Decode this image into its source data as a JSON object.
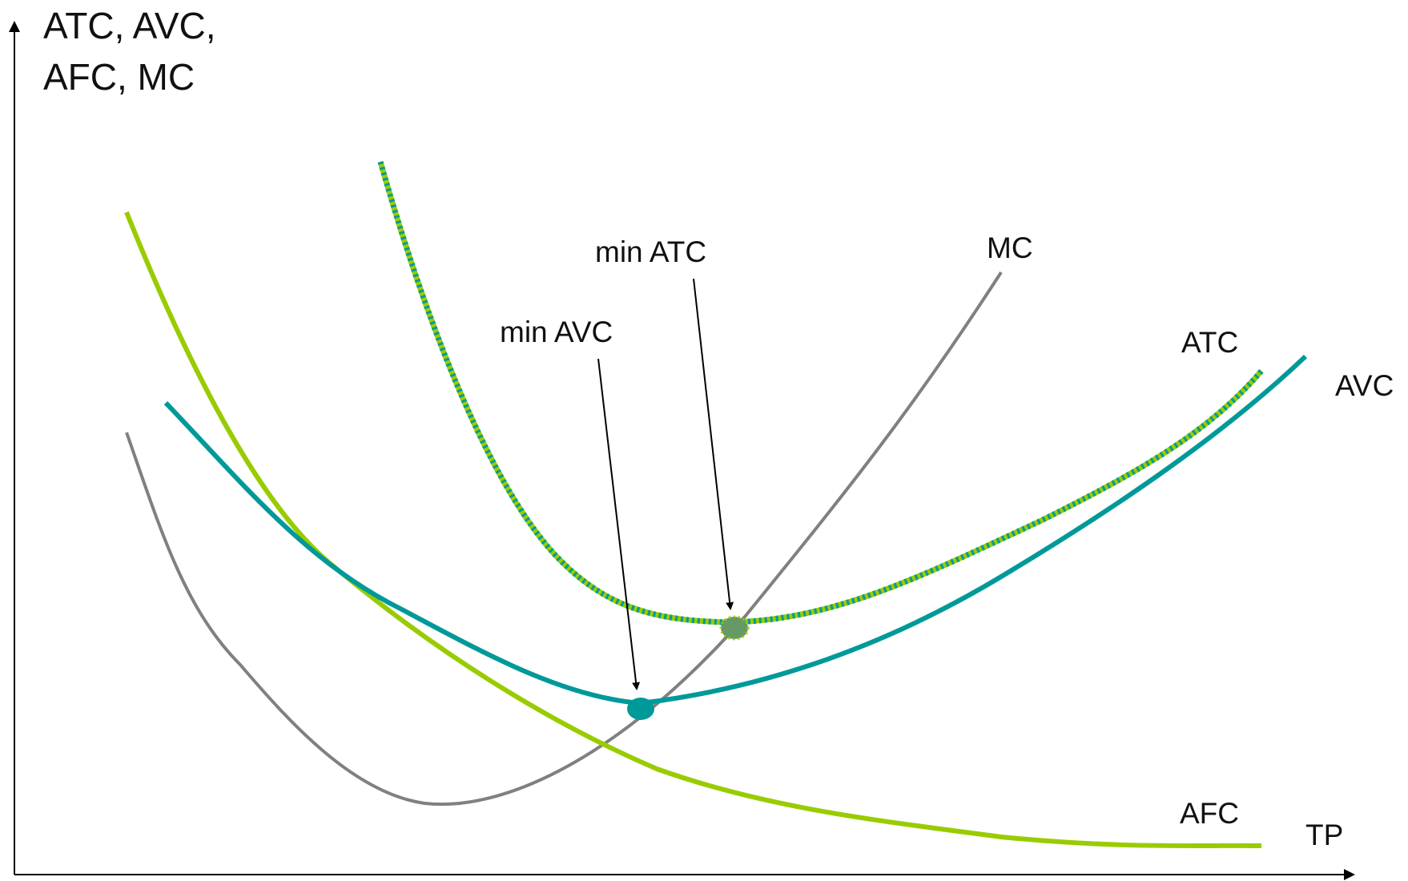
{
  "axes": {
    "y_label_line1": "ATC, AVC,",
    "y_label_line2": "AFC, MC",
    "x_label": "TP"
  },
  "curves": [
    {
      "id": "mc",
      "label": "MC",
      "color": "#808080",
      "style": "solid"
    },
    {
      "id": "atc",
      "label": "ATC",
      "color": "#99cc00",
      "stripe_color": "#009999",
      "style": "striped"
    },
    {
      "id": "avc",
      "label": "AVC",
      "color": "#009999",
      "style": "solid"
    },
    {
      "id": "afc",
      "label": "AFC",
      "color": "#99cc00",
      "style": "solid"
    }
  ],
  "annotations": {
    "min_atc": "min ATC",
    "min_avc": "min AVC"
  },
  "colors": {
    "axis": "#000000",
    "mc": "#808080",
    "atc_primary": "#99cc00",
    "atc_stripe": "#009999",
    "avc": "#009999",
    "afc": "#99cc00",
    "min_avc_point": "#009999",
    "min_atc_point": "#669966"
  }
}
